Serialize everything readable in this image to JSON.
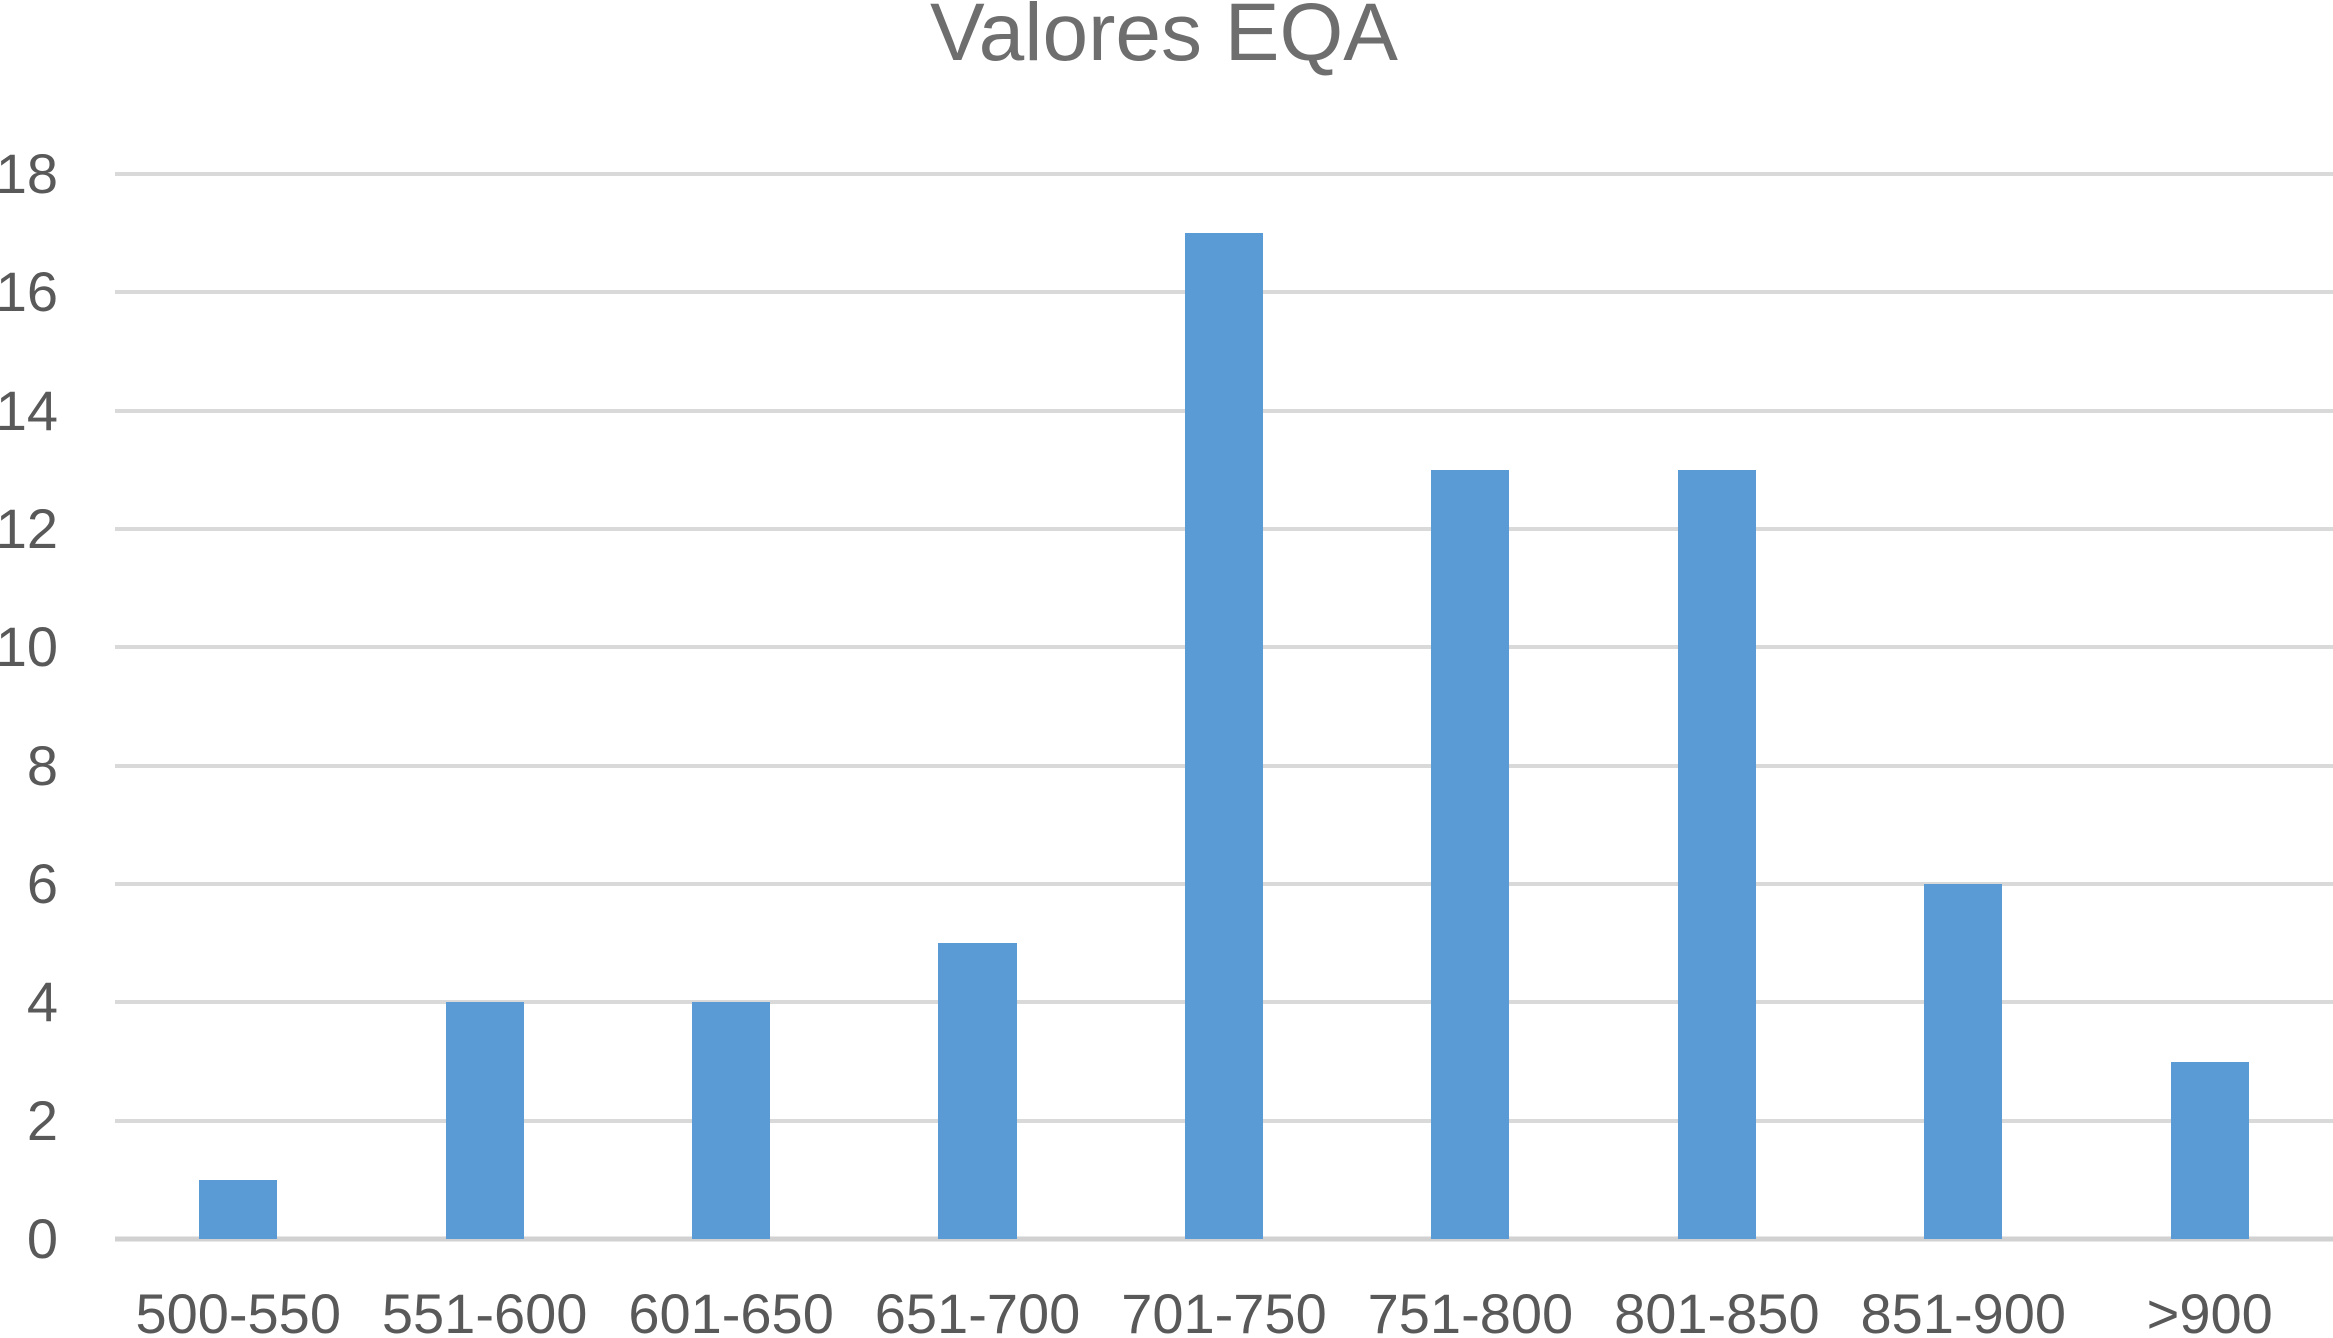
{
  "chart_data": {
    "type": "bar",
    "title": "Valores EQA",
    "categories": [
      "500-550",
      "551-600",
      "601-650",
      "651-700",
      "701-750",
      "751-800",
      "801-850",
      "851-900",
      ">900"
    ],
    "values": [
      1,
      4,
      4,
      5,
      17,
      13,
      13,
      6,
      3
    ],
    "xlabel": "",
    "ylabel": "",
    "ylim": [
      0,
      18
    ],
    "yticks": [
      0,
      2,
      4,
      6,
      8,
      10,
      12,
      14,
      16,
      18
    ],
    "grid": true,
    "legend": false,
    "colors": {
      "bar": "#5B9BD5",
      "gridline": "#D9D9D9",
      "axis_line": "#D1D1D1",
      "title_text": "#6E6E6E",
      "tick_text": "#595959",
      "background": "#FFFFFF"
    }
  }
}
